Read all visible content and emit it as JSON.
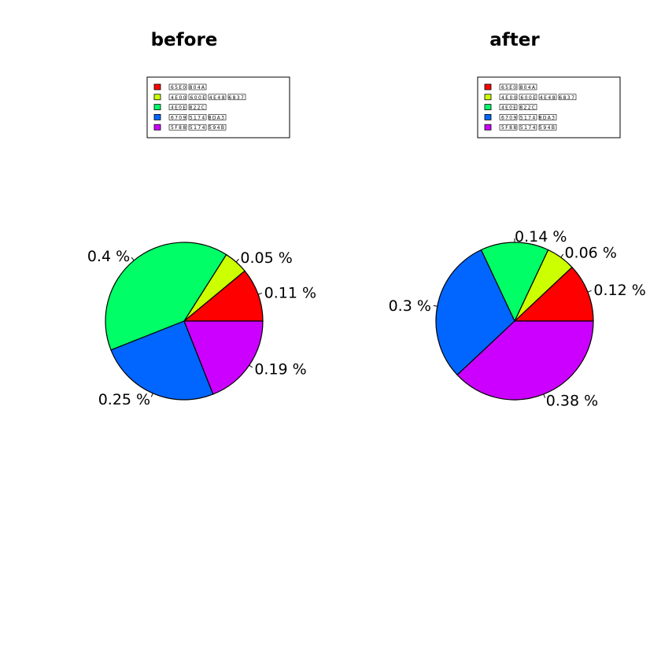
{
  "chart_data": [
    {
      "type": "pie",
      "title": "before",
      "legend": {
        "placement": "top",
        "labels": [
          "65E0 804A",
          "4E00 600E 4E48 6837",
          "4E0E 822C",
          "6709 5174 8DA3",
          "5F88 5174 594B"
        ]
      },
      "slices": [
        {
          "value": 0.11,
          "label": "0.11 %",
          "color": "#ff0000"
        },
        {
          "value": 0.05,
          "label": "0.05 %",
          "color": "#ccff00"
        },
        {
          "value": 0.4,
          "label": "0.4 %",
          "color": "#00ff66"
        },
        {
          "value": 0.25,
          "label": "0.25 %",
          "color": "#0066ff"
        },
        {
          "value": 0.19,
          "label": "0.19 %",
          "color": "#cc00ff"
        }
      ]
    },
    {
      "type": "pie",
      "title": "after",
      "legend": {
        "placement": "top",
        "labels": [
          "65E0 804A",
          "4E00 600E 4E48 6837",
          "4E0E 822C",
          "6709 5174 8DA3",
          "5F88 5174 594B"
        ]
      },
      "slices": [
        {
          "value": 0.12,
          "label": "0.12 %",
          "color": "#ff0000"
        },
        {
          "value": 0.06,
          "label": "0.06 %",
          "color": "#ccff00"
        },
        {
          "value": 0.14,
          "label": "0.14 %",
          "color": "#00ff66"
        },
        {
          "value": 0.3,
          "label": "0.3 %",
          "color": "#0066ff"
        },
        {
          "value": 0.38,
          "label": "0.38 %",
          "color": "#cc00ff"
        }
      ]
    }
  ]
}
